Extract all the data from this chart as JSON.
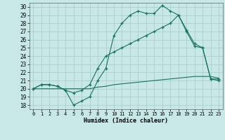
{
  "xlabel": "Humidex (Indice chaleur)",
  "bg_color": "#c8e8e8",
  "grid_color": "#a8cece",
  "line_color": "#1a7060",
  "xlim": [
    -0.5,
    23.5
  ],
  "ylim": [
    17.5,
    30.5
  ],
  "xticks": [
    0,
    1,
    2,
    3,
    4,
    5,
    6,
    7,
    8,
    9,
    10,
    11,
    12,
    13,
    14,
    15,
    16,
    17,
    18,
    19,
    20,
    21,
    22,
    23
  ],
  "yticks": [
    18,
    19,
    20,
    21,
    22,
    23,
    24,
    25,
    26,
    27,
    28,
    29,
    30
  ],
  "curve1_x": [
    0,
    1,
    2,
    3,
    4,
    5,
    6,
    7,
    8,
    9,
    10,
    11,
    12,
    13,
    14,
    15,
    16,
    17,
    18,
    19,
    20,
    21,
    22,
    23
  ],
  "curve1_y": [
    20.0,
    20.5,
    20.5,
    20.3,
    19.8,
    18.0,
    18.5,
    19.0,
    21.0,
    22.5,
    26.5,
    28.0,
    29.0,
    29.5,
    29.2,
    29.2,
    30.2,
    29.5,
    29.0,
    27.0,
    25.2,
    25.0,
    21.2,
    21.2
  ],
  "curve2_x": [
    0,
    1,
    2,
    3,
    4,
    5,
    6,
    7,
    8,
    9,
    10,
    11,
    12,
    13,
    14,
    15,
    16,
    17,
    18,
    19,
    20,
    21,
    22,
    23
  ],
  "curve2_y": [
    20.0,
    20.5,
    20.5,
    20.3,
    19.8,
    19.5,
    19.8,
    20.5,
    22.5,
    24.0,
    24.5,
    25.0,
    25.5,
    26.0,
    26.5,
    27.0,
    27.5,
    28.0,
    29.0,
    27.2,
    25.5,
    25.0,
    21.2,
    21.0
  ],
  "curve3_x": [
    0,
    1,
    2,
    3,
    4,
    5,
    6,
    7,
    8,
    9,
    10,
    11,
    12,
    13,
    14,
    15,
    16,
    17,
    18,
    19,
    20,
    21,
    22,
    23
  ],
  "curve3_y": [
    20.0,
    20.0,
    20.0,
    20.0,
    20.0,
    20.0,
    20.0,
    20.0,
    20.2,
    20.3,
    20.5,
    20.6,
    20.7,
    20.8,
    20.9,
    21.0,
    21.1,
    21.2,
    21.3,
    21.4,
    21.5,
    21.5,
    21.5,
    21.3
  ]
}
